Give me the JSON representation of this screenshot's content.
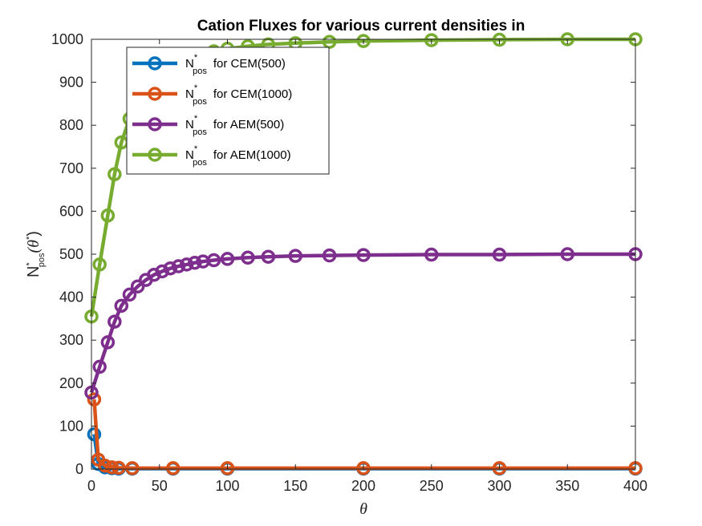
{
  "chart_data": {
    "type": "line",
    "title": "Cation Fluxes for various current densities in",
    "xlabel": "θ",
    "ylabel": {
      "base": "N",
      "sup": "*",
      "sub": "pos",
      "arg": "(θ",
      "arg_sup": "*",
      "close": ")"
    },
    "xlim": [
      0,
      400
    ],
    "ylim": [
      0,
      1000
    ],
    "xticks": [
      0,
      50,
      100,
      150,
      200,
      250,
      300,
      350,
      400
    ],
    "yticks": [
      0,
      100,
      200,
      300,
      400,
      500,
      600,
      700,
      800,
      900,
      1000
    ],
    "grid": false,
    "legend_position": "top-left",
    "series": [
      {
        "name": "for CEM(500)",
        "legend_sym": {
          "base": "N",
          "sup": "*",
          "sub": "pos"
        },
        "color": "#0072BD",
        "points": [
          [
            2,
            81
          ],
          [
            5,
            12
          ],
          [
            10,
            4
          ],
          [
            15,
            2
          ],
          [
            20,
            1
          ],
          [
            30,
            1
          ],
          [
            60,
            1
          ],
          [
            100,
            1
          ],
          [
            200,
            1
          ],
          [
            300,
            1
          ],
          [
            400,
            1
          ]
        ]
      },
      {
        "name": "for CEM(1000)",
        "legend_sym": {
          "base": "N",
          "sup": "*",
          "sub": "pos"
        },
        "color": "#D95319",
        "points": [
          [
            2,
            162
          ],
          [
            5,
            22
          ],
          [
            10,
            8
          ],
          [
            15,
            4
          ],
          [
            20,
            3
          ],
          [
            30,
            2
          ],
          [
            60,
            2
          ],
          [
            100,
            2
          ],
          [
            200,
            2
          ],
          [
            300,
            2
          ],
          [
            400,
            2
          ]
        ]
      },
      {
        "name": "for AEM(500)",
        "legend_sym": {
          "base": "N",
          "sup": "*",
          "sub": "pos"
        },
        "color": "#7E2F8E",
        "points": [
          [
            0,
            178
          ],
          [
            6,
            238
          ],
          [
            12,
            295
          ],
          [
            17,
            343
          ],
          [
            22,
            380
          ],
          [
            28,
            406
          ],
          [
            34,
            425
          ],
          [
            40,
            440
          ],
          [
            46,
            452
          ],
          [
            52,
            460
          ],
          [
            58,
            467
          ],
          [
            64,
            472
          ],
          [
            70,
            476
          ],
          [
            76,
            480
          ],
          [
            82,
            483
          ],
          [
            90,
            486
          ],
          [
            100,
            489
          ],
          [
            115,
            492
          ],
          [
            130,
            494
          ],
          [
            150,
            496
          ],
          [
            175,
            497
          ],
          [
            200,
            498
          ],
          [
            250,
            499
          ],
          [
            300,
            499
          ],
          [
            350,
            500
          ],
          [
            400,
            500
          ]
        ]
      },
      {
        "name": "for AEM(1000)",
        "legend_sym": {
          "base": "N",
          "sup": "*",
          "sub": "pos"
        },
        "color": "#77AC30",
        "points": [
          [
            0,
            355
          ],
          [
            6,
            476
          ],
          [
            12,
            590
          ],
          [
            17,
            686
          ],
          [
            22,
            760
          ],
          [
            28,
            815
          ],
          [
            34,
            851
          ],
          [
            40,
            878
          ],
          [
            46,
            901
          ],
          [
            52,
            920
          ],
          [
            58,
            934
          ],
          [
            64,
            945
          ],
          [
            70,
            954
          ],
          [
            80,
            964
          ],
          [
            90,
            972
          ],
          [
            100,
            978
          ],
          [
            115,
            984
          ],
          [
            130,
            988
          ],
          [
            150,
            991
          ],
          [
            175,
            994
          ],
          [
            200,
            996
          ],
          [
            250,
            998
          ],
          [
            300,
            999
          ],
          [
            350,
            1000
          ],
          [
            400,
            1000
          ]
        ]
      }
    ]
  }
}
